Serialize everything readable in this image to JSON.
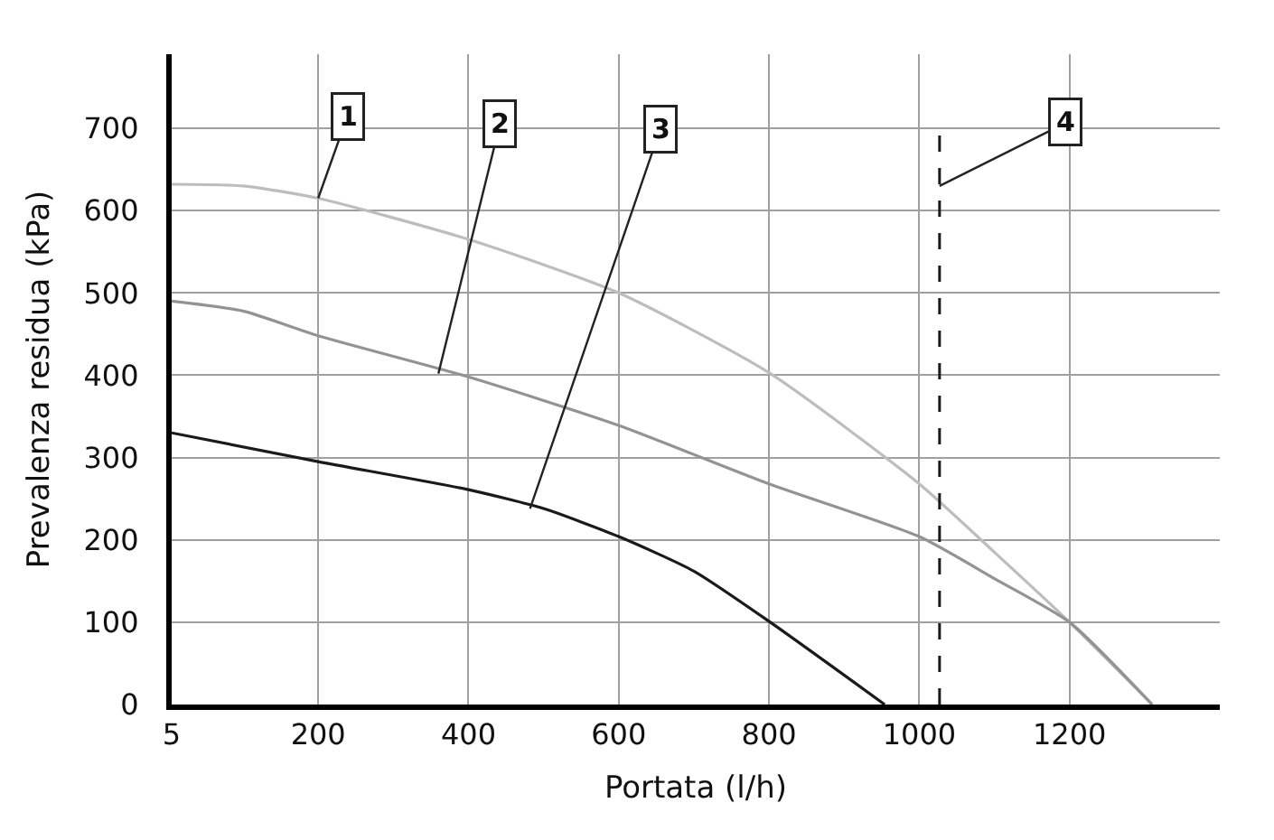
{
  "chart_data": {
    "type": "line",
    "xlabel": "Portata (l/h)",
    "ylabel": "Prevalenza residua (kPa)",
    "x": [
      5,
      100,
      200,
      400,
      600,
      800,
      1000,
      1100,
      1200,
      1310
    ],
    "series": [
      {
        "color": "#bdbdbd",
        "values": [
          632,
          630,
          615,
          565,
          500,
          403,
          268,
          185,
          100,
          0
        ]
      },
      {
        "color": "#939393",
        "values": [
          490,
          478,
          448,
          398,
          339,
          268,
          204,
          153,
          100,
          0
        ]
      },
      {
        "color": "#1a1a1a",
        "x": [
          5,
          200,
          400,
          500,
          600,
          700,
          800,
          954
        ],
        "values": [
          330,
          295,
          261,
          238,
          204,
          162,
          101,
          0
        ]
      }
    ],
    "xlim": [
      5,
      1400
    ],
    "ylim": [
      0,
      790
    ],
    "xticks": [
      5,
      200,
      400,
      600,
      800,
      1000,
      1200
    ],
    "yticks": [
      0,
      100,
      200,
      300,
      400,
      500,
      600,
      700
    ],
    "ref_lines": [
      {
        "axis": "x",
        "value": 1027,
        "color": "#1a1a1a",
        "line_style": "dashed"
      }
    ],
    "annotations": [
      {
        "text": "1",
        "x": 200,
        "y": 615
      },
      {
        "text": "2",
        "x": 360,
        "y": 402
      },
      {
        "text": "3",
        "x": 482,
        "y": 238
      },
      {
        "text": "4",
        "x": 1027,
        "y": 630
      }
    ],
    "grid": true,
    "marker": "none",
    "line_style": "solid"
  }
}
